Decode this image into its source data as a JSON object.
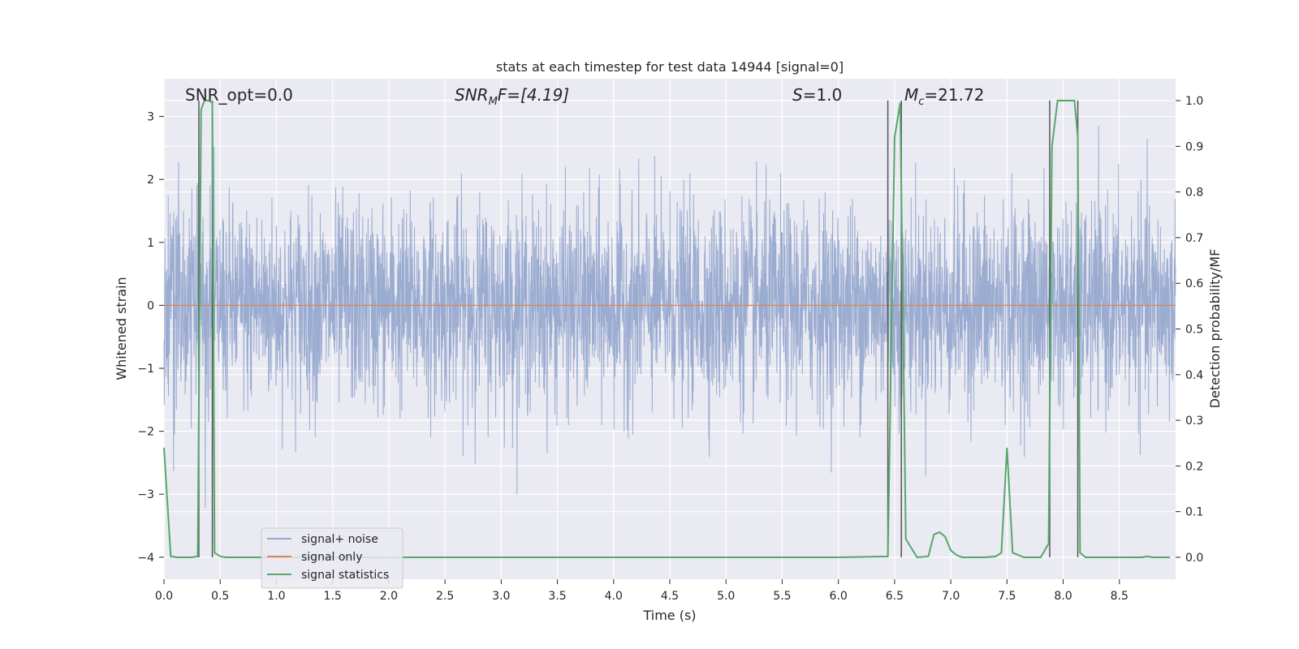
{
  "chart_data": {
    "type": "line",
    "title": "stats at each timestep for test data 14944 [signal=0]",
    "xlabel": "Time (s)",
    "ylabel": "Whitened strain",
    "ylabel_right": "Detection probability/MF",
    "xlim": [
      0.0,
      9.0
    ],
    "ylim": [
      -4.35,
      3.6
    ],
    "ylim_right": [
      -0.048,
      1.048
    ],
    "x_ticks": [
      "0.0",
      "0.5",
      "1.0",
      "1.5",
      "2.0",
      "2.5",
      "3.0",
      "3.5",
      "4.0",
      "4.5",
      "5.0",
      "5.5",
      "6.0",
      "6.5",
      "7.0",
      "7.5",
      "8.0",
      "8.5"
    ],
    "y_ticks": [
      "3",
      "2",
      "1",
      "0",
      "−1",
      "−2",
      "−3",
      "−4"
    ],
    "y_ticks_right": [
      "1.0",
      "0.9",
      "0.8",
      "0.7",
      "0.6",
      "0.5",
      "0.4",
      "0.3",
      "0.2",
      "0.1",
      "0.0"
    ],
    "grid": true,
    "annotations": {
      "snr_opt": "SNR_opt=0.0",
      "snr_mf_base": "SNR",
      "snr_mf_sub": "M",
      "snr_mf_rest": "F=[4.19]",
      "s_sym": "S",
      "s_val": "=1.0",
      "mc_sym": "M",
      "mc_sub": "c",
      "mc_val": "=21.72"
    },
    "legend": {
      "placement": "lower-left",
      "entries": [
        "signal+ noise",
        "signal only",
        "signal statistics"
      ]
    },
    "colors": {
      "background": "#eaeaf2",
      "noise": "#97a9cf",
      "signal": "#dd8452",
      "stats": "#55a868",
      "vlines": "#555555"
    },
    "series": [
      {
        "name": "signal statistics",
        "axis": "right",
        "x": [
          0.0,
          0.06,
          0.12,
          0.18,
          0.24,
          0.3,
          0.33,
          0.36,
          0.4,
          0.43,
          0.45,
          0.5,
          0.55,
          0.6,
          0.8,
          1.0,
          2.0,
          3.0,
          4.0,
          5.0,
          6.0,
          6.44,
          6.5,
          6.55,
          6.6,
          6.7,
          6.8,
          6.85,
          6.9,
          6.95,
          7.0,
          7.05,
          7.1,
          7.3,
          7.4,
          7.45,
          7.5,
          7.55,
          7.65,
          7.8,
          7.87,
          7.9,
          7.95,
          8.0,
          8.05,
          8.1,
          8.13,
          8.15,
          8.2,
          8.5,
          8.7,
          8.75,
          8.8,
          8.95
        ],
        "values": [
          0.24,
          0.002,
          0.0,
          0.0,
          0.0,
          0.002,
          0.98,
          1.0,
          1.0,
          0.995,
          0.01,
          0.002,
          0.0,
          0.0,
          0.0,
          0.0,
          0.0,
          0.0,
          0.0,
          0.0,
          0.0,
          0.002,
          0.92,
          0.995,
          0.04,
          0.0,
          0.002,
          0.05,
          0.055,
          0.045,
          0.015,
          0.005,
          0.0,
          0.0,
          0.002,
          0.01,
          0.24,
          0.01,
          0.0,
          0.0,
          0.03,
          0.9,
          1.0,
          1.0,
          1.0,
          1.0,
          0.92,
          0.01,
          0.0,
          0.0,
          0.0,
          0.002,
          0.0,
          0.0
        ]
      },
      {
        "name": "signal only",
        "axis": "left",
        "x": [
          0.0,
          9.0
        ],
        "values": [
          0.0,
          0.0
        ]
      },
      {
        "name": "signal+ noise",
        "axis": "left",
        "description": "dense whitened noise, approx. Gaussian with sigma ~0.8, range about -4 to 3.3"
      }
    ],
    "vertical_lines_x": [
      0.31,
      0.43,
      6.44,
      6.56,
      7.88,
      8.13
    ]
  }
}
